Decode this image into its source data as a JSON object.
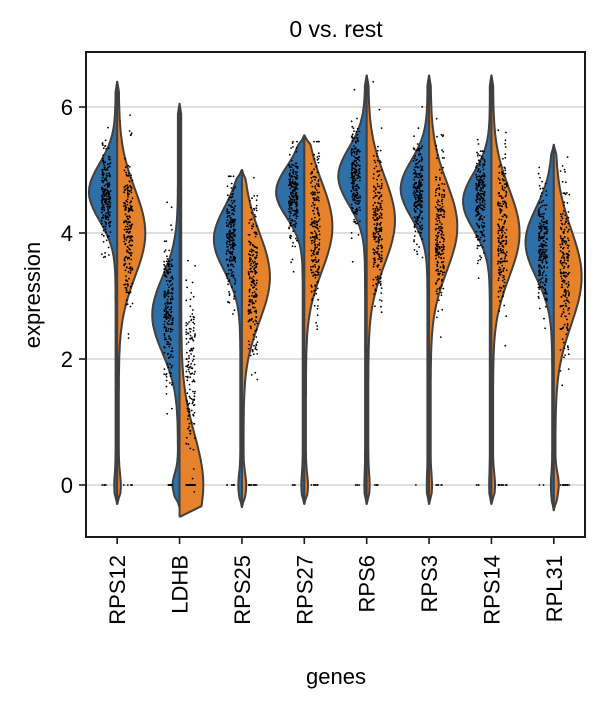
{
  "chart_data": {
    "type": "violin",
    "subtype": "split-violin-with-jitter",
    "title": "0 vs. rest",
    "xlabel": "genes",
    "ylabel": "expression",
    "ylim": [
      -0.85,
      6.9
    ],
    "yticks": [
      0,
      2,
      4,
      6
    ],
    "ytick_labels": [
      "0",
      "2",
      "4",
      "6"
    ],
    "grid": "horizontal",
    "categories": [
      "RPS12",
      "LDHB",
      "RPS25",
      "RPS27",
      "RPS6",
      "RPS3",
      "RPS14",
      "RPL31"
    ],
    "series": [
      {
        "name": "0",
        "side": "left",
        "color": "#2f6fa7",
        "values": [
          {
            "gene": "RPS12",
            "median": 4.6,
            "mode": 4.65,
            "min": -0.3,
            "max": 6.4,
            "spread": 0.45,
            "zero_frac": 0.02
          },
          {
            "gene": "LDHB",
            "median": 2.75,
            "mode": 2.7,
            "min": -0.35,
            "max": 6.05,
            "spread": 0.6,
            "zero_frac": 0.08
          },
          {
            "gene": "RPS25",
            "median": 3.85,
            "mode": 3.9,
            "min": -0.35,
            "max": 5.0,
            "spread": 0.5,
            "zero_frac": 0.03
          },
          {
            "gene": "RPS27",
            "median": 4.6,
            "mode": 4.65,
            "min": -0.3,
            "max": 5.55,
            "spread": 0.4,
            "zero_frac": 0.02
          },
          {
            "gene": "RPS6",
            "median": 4.85,
            "mode": 4.9,
            "min": -0.3,
            "max": 6.5,
            "spread": 0.45,
            "zero_frac": 0.01
          },
          {
            "gene": "RPS3",
            "median": 4.65,
            "mode": 4.7,
            "min": -0.3,
            "max": 6.5,
            "spread": 0.45,
            "zero_frac": 0.01
          },
          {
            "gene": "RPS14",
            "median": 4.5,
            "mode": 4.5,
            "min": -0.3,
            "max": 6.5,
            "spread": 0.45,
            "zero_frac": 0.01
          },
          {
            "gene": "RPL31",
            "median": 3.8,
            "mode": 3.85,
            "min": -0.4,
            "max": 5.4,
            "spread": 0.55,
            "zero_frac": 0.02
          }
        ]
      },
      {
        "name": "rest",
        "side": "right",
        "color": "#e6812c",
        "values": [
          {
            "gene": "RPS12",
            "median": 4.0,
            "mode": 4.0,
            "min": -0.3,
            "max": 6.4,
            "spread": 0.7,
            "zero_frac": 0.03
          },
          {
            "gene": "LDHB",
            "median": 1.8,
            "mode": 0.0,
            "min": -0.5,
            "max": 6.05,
            "spread": 0.8,
            "zero_frac": 0.3
          },
          {
            "gene": "RPS25",
            "median": 3.3,
            "mode": 3.3,
            "min": -0.35,
            "max": 5.0,
            "spread": 0.7,
            "zero_frac": 0.04
          },
          {
            "gene": "RPS27",
            "median": 4.1,
            "mode": 4.1,
            "min": -0.3,
            "max": 5.55,
            "spread": 0.7,
            "zero_frac": 0.03
          },
          {
            "gene": "RPS6",
            "median": 4.2,
            "mode": 4.2,
            "min": -0.3,
            "max": 6.5,
            "spread": 0.7,
            "zero_frac": 0.02
          },
          {
            "gene": "RPS3",
            "median": 4.1,
            "mode": 4.1,
            "min": -0.3,
            "max": 6.5,
            "spread": 0.7,
            "zero_frac": 0.02
          },
          {
            "gene": "RPS14",
            "median": 4.0,
            "mode": 4.0,
            "min": -0.3,
            "max": 6.5,
            "spread": 0.7,
            "zero_frac": 0.03
          },
          {
            "gene": "RPL31",
            "median": 3.3,
            "mode": 3.3,
            "min": -0.4,
            "max": 5.4,
            "spread": 0.75,
            "zero_frac": 0.05
          }
        ]
      }
    ],
    "colors": {
      "group_0": "#2f6fa7",
      "rest": "#e6812c",
      "outline": "#404040",
      "grid": "#cccccc",
      "points": "#000000"
    }
  }
}
